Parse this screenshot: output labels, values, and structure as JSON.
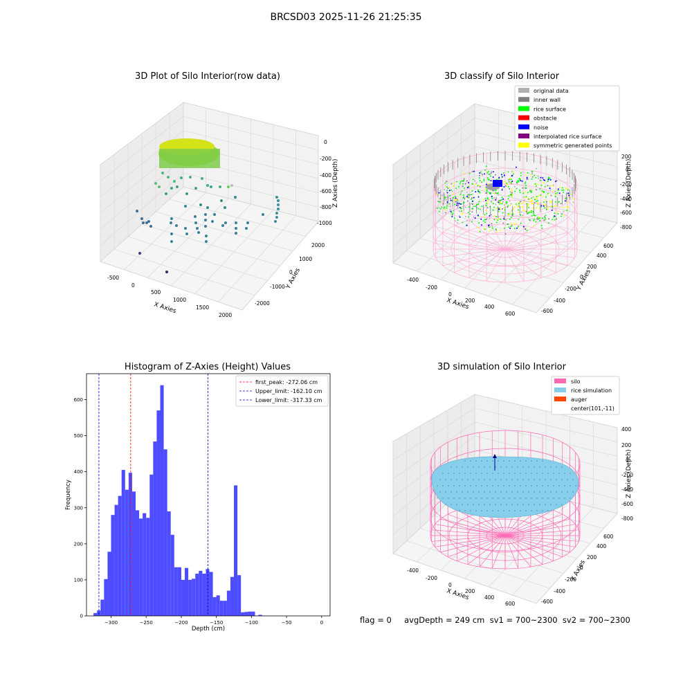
{
  "suptitle": "BRCSD03 2025-11-26 21:25:35",
  "colors": {
    "hist_bar": "#4d4dff",
    "first_peak_line": "#ff0000",
    "limit_line": "#0000cc",
    "silo_wire": "#ff69b4",
    "rice_sim": "#87ceeb"
  },
  "panels": {
    "raw": {
      "title": "3D Plot of Silo Interior(row data)",
      "xlabel": "X Axies",
      "ylabel": "Y Axies",
      "zlabel": "Z Axies (Depth)",
      "xticks": [
        "-500",
        "0",
        "500",
        "1000",
        "1500",
        "2000"
      ],
      "yticks": [
        "-2000",
        "-1000",
        "0",
        "1000",
        "2000"
      ],
      "zticks": [
        "0",
        "-200",
        "-400",
        "-600",
        "-800",
        "-1000"
      ]
    },
    "classify": {
      "title": "3D classify of Silo Interior",
      "xlabel": "X Axies",
      "ylabel": "Y Axies",
      "zlabel": "Z Axies (Depth)",
      "xticks": [
        "-400",
        "-200",
        "0",
        "200",
        "400",
        "600"
      ],
      "yticks": [
        "-600",
        "-400",
        "-200",
        "0",
        "200",
        "400",
        "600"
      ],
      "zticks": [
        "200",
        "0",
        "-200",
        "-400",
        "-600",
        "-800"
      ],
      "legend": [
        {
          "label": "original data",
          "color": "#b0b0b0"
        },
        {
          "label": "inner wall",
          "color": "#808080"
        },
        {
          "label": "rice surface",
          "color": "#00ff00"
        },
        {
          "label": "obstacle",
          "color": "#ff0000"
        },
        {
          "label": "noise",
          "color": "#0000ff"
        },
        {
          "label": "interpolated rice surface",
          "color": "#800080"
        },
        {
          "label": "symmetric generated points",
          "color": "#ffff00"
        }
      ]
    },
    "simulation": {
      "title": "3D simulation of Silo Interior",
      "xlabel": "X Axies",
      "ylabel": "Y Axies",
      "zlabel": "Z Axies (Depth)",
      "xticks": [
        "-400",
        "-200",
        "0",
        "200",
        "400",
        "600"
      ],
      "yticks": [
        "-600",
        "-400",
        "-200",
        "0",
        "200",
        "400",
        "600"
      ],
      "zticks": [
        "400",
        "200",
        "0",
        "-200",
        "-400",
        "-600",
        "-800"
      ],
      "legend": [
        {
          "label": "silo",
          "color": "#ff69b4"
        },
        {
          "label": "rice simulation",
          "color": "#87ceeb"
        },
        {
          "label": "auger",
          "color": "#ff4500"
        },
        {
          "label": "center(101,-11)",
          "color": ""
        }
      ]
    }
  },
  "footer": "flag = 0     avgDepth = 249 cm  sv1 = 700~2300  sv2 = 700~2300",
  "chart_data": [
    {
      "type": "bar",
      "title": "Histogram of Z-Axies (Height) Values",
      "xlabel": "Depth (cm)",
      "ylabel": "Frequency",
      "xlim": [
        -335,
        12
      ],
      "ylim": [
        0,
        672
      ],
      "xticks": [
        -300,
        -250,
        -200,
        -150,
        -100,
        -50,
        0
      ],
      "yticks": [
        0,
        100,
        200,
        300,
        400,
        500,
        600
      ],
      "bin_width": 5,
      "bin_starts": [
        -330,
        -325,
        -320,
        -315,
        -310,
        -305,
        -300,
        -295,
        -290,
        -285,
        -280,
        -275,
        -270,
        -265,
        -260,
        -255,
        -250,
        -245,
        -240,
        -235,
        -230,
        -225,
        -220,
        -215,
        -210,
        -205,
        -200,
        -195,
        -190,
        -185,
        -180,
        -175,
        -170,
        -165,
        -160,
        -155,
        -150,
        -145,
        -140,
        -135,
        -130,
        -125,
        -120,
        -115,
        -110,
        -105,
        -100,
        -95,
        -90,
        -85,
        -80,
        -75,
        -70,
        -65,
        -60,
        -55,
        -50,
        -45,
        -40,
        -35,
        -30,
        -25,
        -20,
        -15,
        -10,
        -5,
        0
      ],
      "values": [
        0,
        8,
        15,
        45,
        102,
        178,
        280,
        308,
        333,
        405,
        350,
        397,
        345,
        293,
        270,
        285,
        272,
        392,
        484,
        570,
        640,
        462,
        290,
        225,
        135,
        135,
        100,
        133,
        100,
        103,
        117,
        125,
        117,
        130,
        122,
        52,
        57,
        42,
        42,
        70,
        108,
        362,
        113,
        10,
        11,
        12,
        12,
        0,
        3,
        0,
        0,
        0,
        0,
        0,
        0,
        0,
        0,
        0,
        0,
        0,
        0,
        0,
        0,
        0,
        0,
        0,
        0
      ],
      "reference_lines": [
        {
          "name": "first_peak: -272.06 cm",
          "x": -272.06,
          "color": "#ff0000",
          "style": "dashed"
        },
        {
          "name": "Upper_limit: -162.10 cm",
          "x": -162.1,
          "color": "#0000cc",
          "style": "dashed"
        },
        {
          "name": "Lower_limit: -317.33 cm",
          "x": -317.33,
          "color": "#0000cc",
          "style": "dashed"
        }
      ],
      "legend_position": "top-right"
    }
  ]
}
